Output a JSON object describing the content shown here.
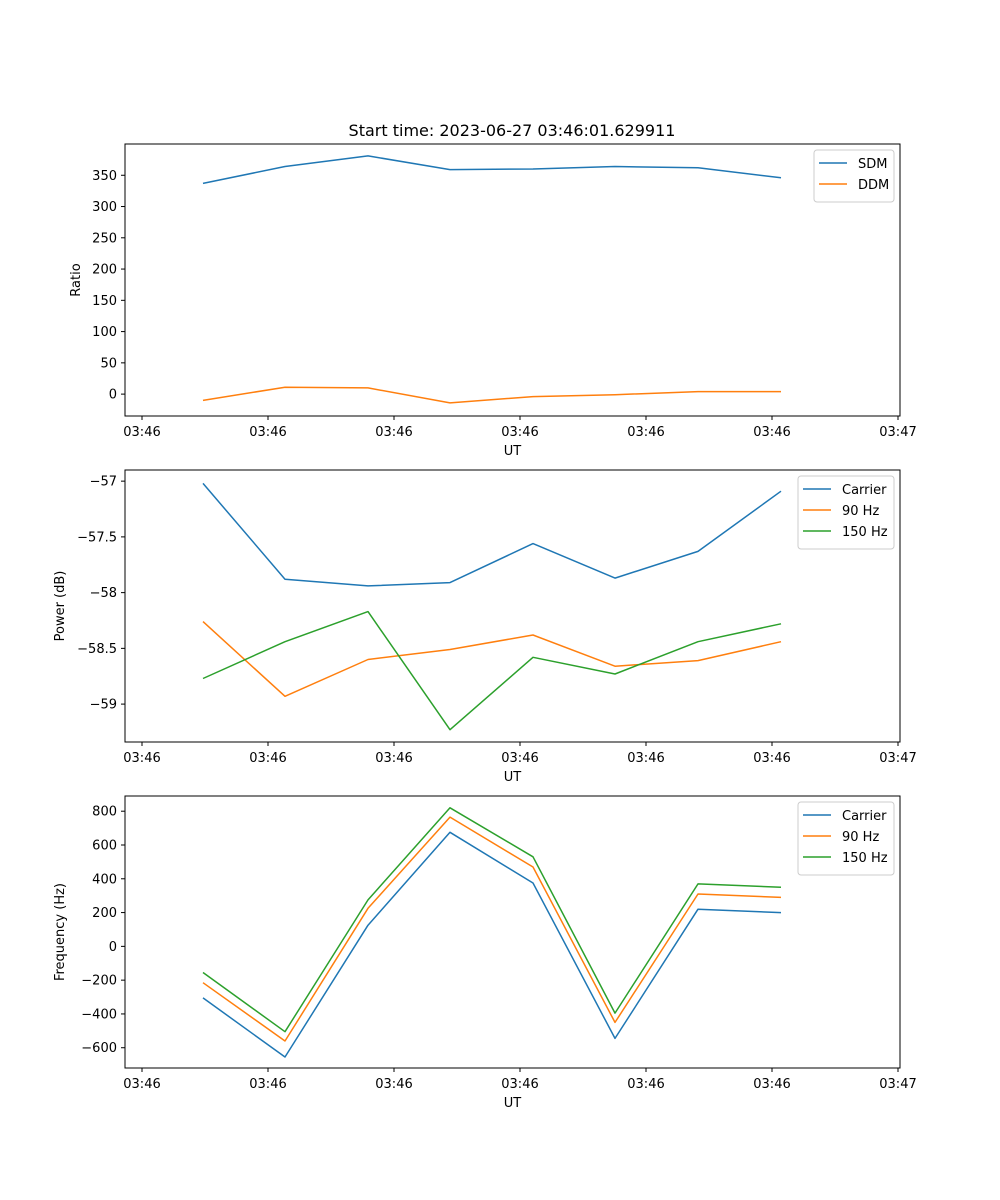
{
  "figure": {
    "title": "Start time: 2023-06-27 03:46:01.629911"
  },
  "chart_data": [
    {
      "type": "line",
      "title": "Start time: 2023-06-27 03:46:01.629911",
      "xlabel": "UT",
      "ylabel": "Ratio",
      "x_tick_labels": [
        "03:46",
        "03:46",
        "03:46",
        "03:46",
        "03:46",
        "03:46",
        "03:47"
      ],
      "ylim": [
        -35,
        400
      ],
      "y_ticks": [
        0,
        50,
        100,
        150,
        200,
        250,
        300,
        350
      ],
      "legend_position": "top-right",
      "series": [
        {
          "name": "SDM",
          "color": "#1f77b4",
          "values": [
            337,
            364,
            381,
            359,
            360,
            364,
            362,
            346
          ]
        },
        {
          "name": "DDM",
          "color": "#ff7f0e",
          "values": [
            -10,
            11,
            10,
            -14,
            -4,
            -1,
            4,
            4
          ]
        }
      ]
    },
    {
      "type": "line",
      "title": "",
      "xlabel": "UT",
      "ylabel": "Power (dB)",
      "x_tick_labels": [
        "03:46",
        "03:46",
        "03:46",
        "03:46",
        "03:46",
        "03:46",
        "03:47"
      ],
      "ylim": [
        -59.34,
        -56.9
      ],
      "y_ticks": [
        -59.0,
        -58.5,
        -58.0,
        -57.5,
        -57.0
      ],
      "legend_position": "top-right",
      "series": [
        {
          "name": "Carrier",
          "color": "#1f77b4",
          "values": [
            -57.02,
            -57.88,
            -57.94,
            -57.91,
            -57.56,
            -57.87,
            -57.63,
            -57.09
          ]
        },
        {
          "name": "90 Hz",
          "color": "#ff7f0e",
          "values": [
            -58.26,
            -58.93,
            -58.6,
            -58.51,
            -58.38,
            -58.66,
            -58.61,
            -58.44
          ]
        },
        {
          "name": "150 Hz",
          "color": "#2ca02c",
          "values": [
            -58.77,
            -58.44,
            -58.17,
            -59.23,
            -58.58,
            -58.73,
            -58.44,
            -58.28
          ]
        }
      ]
    },
    {
      "type": "line",
      "title": "",
      "xlabel": "UT",
      "ylabel": "Frequency (Hz)",
      "x_tick_labels": [
        "03:46",
        "03:46",
        "03:46",
        "03:46",
        "03:46",
        "03:46",
        "03:47"
      ],
      "ylim": [
        -720,
        890
      ],
      "y_ticks": [
        -600,
        -400,
        -200,
        0,
        200,
        400,
        600,
        800
      ],
      "legend_position": "top-right",
      "series": [
        {
          "name": "Carrier",
          "color": "#1f77b4",
          "values": [
            -305,
            -655,
            125,
            675,
            375,
            -545,
            220,
            200
          ]
        },
        {
          "name": "90 Hz",
          "color": "#ff7f0e",
          "values": [
            -215,
            -560,
            225,
            765,
            470,
            -450,
            310,
            290
          ]
        },
        {
          "name": "150 Hz",
          "color": "#2ca02c",
          "values": [
            -155,
            -505,
            275,
            820,
            530,
            -395,
            370,
            350
          ]
        }
      ]
    }
  ]
}
